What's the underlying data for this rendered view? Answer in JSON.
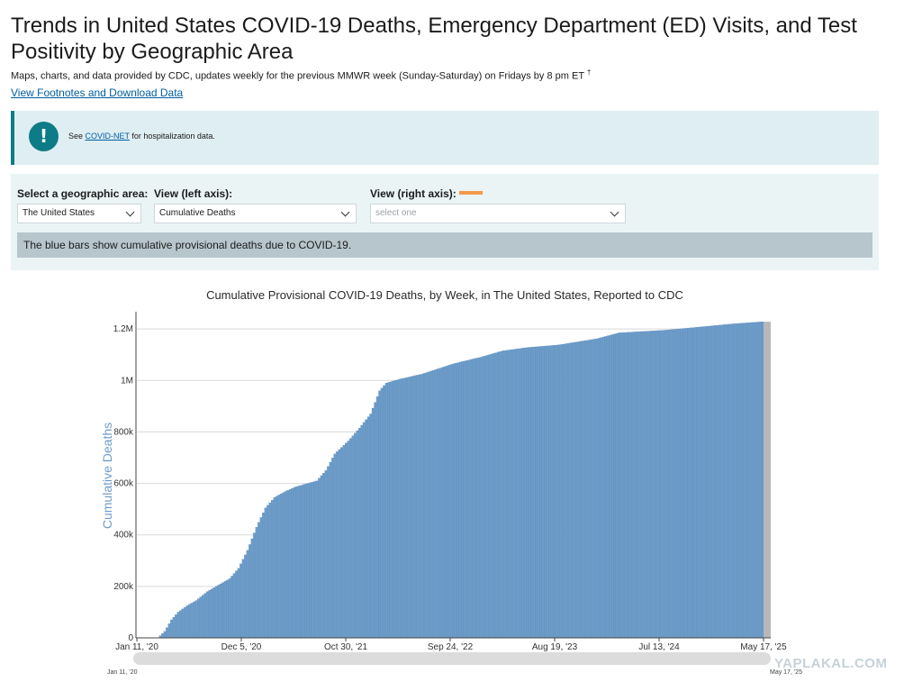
{
  "page": {
    "title": "Trends in United States COVID-19 Deaths, Emergency Department (ED) Visits, and Test Positivity by Geographic Area",
    "subtitle": "Maps, charts, and data provided by CDC, updates weekly for the previous MMWR week (Sunday-Saturday) on Fridays by 8 pm ET",
    "subtitle_mark": "†",
    "footnotes_link": "View Footnotes and Download Data"
  },
  "alert": {
    "icon": "exclamation-icon",
    "prefix": "See ",
    "link": "COVID-NET",
    "suffix": " for hospitalization data."
  },
  "controls": {
    "geo_label": "Select a geographic area:",
    "geo_value": "The United States",
    "left_label": "View (left axis):",
    "left_value": "Cumulative Deaths",
    "right_label": "View (right axis):",
    "right_placeholder": "select one",
    "right_swatch_color": "#f2994a",
    "description": "The blue bars show cumulative provisional deaths due to COVID-19."
  },
  "chart_data": {
    "type": "bar",
    "title": "Cumulative Provisional COVID-19 Deaths, by Week, in The United States, Reported to CDC",
    "ylabel": "Cumulative Deaths",
    "xlabel": "",
    "x_start": "Jan 11, '20",
    "x_end": "May 17, '25",
    "x_ticks": [
      "Jan 11, '20",
      "Dec 5, '20",
      "Oct 30, '21",
      "Sep 24, '22",
      "Aug 19, '23",
      "Jul 13, '24",
      "May 17, '25"
    ],
    "y_ticks": [
      "0",
      "200k",
      "400k",
      "600k",
      "800k",
      "1M",
      "1.2M"
    ],
    "y_tick_values": [
      0,
      200000,
      400000,
      600000,
      800000,
      1000000,
      1200000
    ],
    "ylim": [
      0,
      1260000
    ],
    "bar_color": "#6d9cc9",
    "frequency": "weekly",
    "series_points": [
      {
        "date": "2020-01-11",
        "value": 0
      },
      {
        "date": "2020-03-14",
        "value": 0
      },
      {
        "date": "2020-04-04",
        "value": 25000
      },
      {
        "date": "2020-04-25",
        "value": 70000
      },
      {
        "date": "2020-05-16",
        "value": 100000
      },
      {
        "date": "2020-06-13",
        "value": 125000
      },
      {
        "date": "2020-07-11",
        "value": 145000
      },
      {
        "date": "2020-08-15",
        "value": 180000
      },
      {
        "date": "2020-09-19",
        "value": 205000
      },
      {
        "date": "2020-10-24",
        "value": 230000
      },
      {
        "date": "2020-11-21",
        "value": 270000
      },
      {
        "date": "2020-12-19",
        "value": 340000
      },
      {
        "date": "2021-01-16",
        "value": 430000
      },
      {
        "date": "2021-02-13",
        "value": 505000
      },
      {
        "date": "2021-03-13",
        "value": 545000
      },
      {
        "date": "2021-04-10",
        "value": 565000
      },
      {
        "date": "2021-05-15",
        "value": 585000
      },
      {
        "date": "2021-06-19",
        "value": 598000
      },
      {
        "date": "2021-07-24",
        "value": 610000
      },
      {
        "date": "2021-08-21",
        "value": 650000
      },
      {
        "date": "2021-09-18",
        "value": 715000
      },
      {
        "date": "2021-10-30",
        "value": 765000
      },
      {
        "date": "2021-12-04",
        "value": 815000
      },
      {
        "date": "2022-01-08",
        "value": 870000
      },
      {
        "date": "2022-02-05",
        "value": 960000
      },
      {
        "date": "2022-02-26",
        "value": 990000
      },
      {
        "date": "2022-04-09",
        "value": 1005000
      },
      {
        "date": "2022-06-18",
        "value": 1025000
      },
      {
        "date": "2022-09-24",
        "value": 1065000
      },
      {
        "date": "2022-12-17",
        "value": 1090000
      },
      {
        "date": "2023-02-25",
        "value": 1115000
      },
      {
        "date": "2023-05-13",
        "value": 1128000
      },
      {
        "date": "2023-08-19",
        "value": 1138000
      },
      {
        "date": "2023-12-16",
        "value": 1162000
      },
      {
        "date": "2024-02-24",
        "value": 1185000
      },
      {
        "date": "2024-07-13",
        "value": 1195000
      },
      {
        "date": "2024-10-19",
        "value": 1206000
      },
      {
        "date": "2025-02-15",
        "value": 1220000
      },
      {
        "date": "2025-05-17",
        "value": 1228000
      }
    ]
  },
  "range_slider": {
    "start_label": "Jan 11, '20",
    "end_label": "May 17, '25"
  },
  "watermark": "YAPLAKAL.COM"
}
